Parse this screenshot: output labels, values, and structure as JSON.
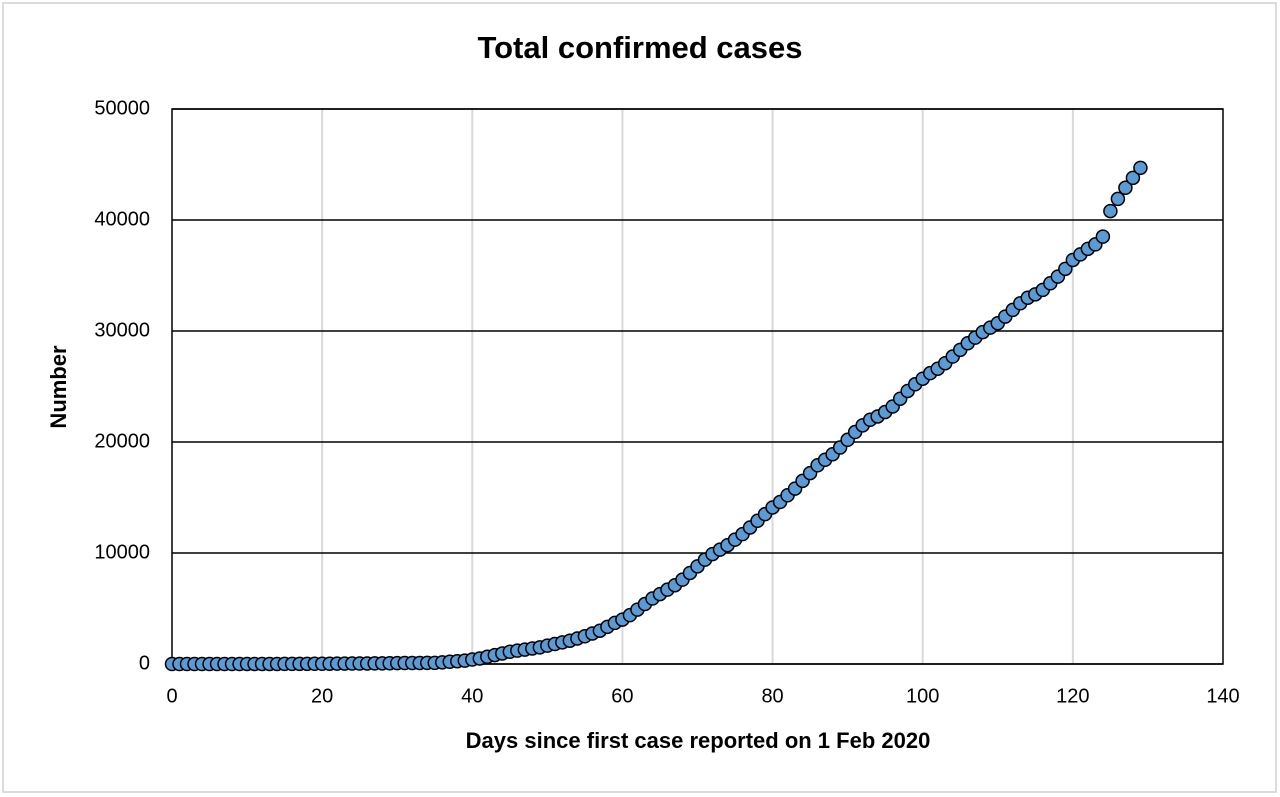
{
  "chart_data": {
    "type": "scatter",
    "title": "Total confirmed cases",
    "x_label": "Days since first case reported on 1 Feb 2020",
    "y_label": "Number",
    "xlim": [
      0,
      140
    ],
    "xticks": [
      0,
      20,
      40,
      60,
      80,
      100,
      120,
      140
    ],
    "ylim": [
      0,
      50000
    ],
    "yticks": [
      0,
      10000,
      20000,
      30000,
      40000,
      50000
    ],
    "grid": true,
    "color": "#5b9bd5",
    "x": [
      0,
      1,
      2,
      3,
      4,
      5,
      6,
      7,
      8,
      9,
      10,
      11,
      12,
      13,
      14,
      15,
      16,
      17,
      18,
      19,
      20,
      21,
      22,
      23,
      24,
      25,
      26,
      27,
      28,
      29,
      30,
      31,
      32,
      33,
      34,
      35,
      36,
      37,
      38,
      39,
      40,
      41,
      42,
      43,
      44,
      45,
      46,
      47,
      48,
      49,
      50,
      51,
      52,
      53,
      54,
      55,
      56,
      57,
      58,
      59,
      60,
      61,
      62,
      63,
      64,
      65,
      66,
      67,
      68,
      69,
      70,
      71,
      72,
      73,
      74,
      75,
      76,
      77,
      78,
      79,
      80,
      81,
      82,
      83,
      84,
      85,
      86,
      87,
      88,
      89,
      90,
      91,
      92,
      93,
      94,
      95,
      96,
      97,
      98,
      99,
      100,
      101,
      102,
      103,
      104,
      105,
      106,
      107,
      108,
      109,
      110,
      111,
      112,
      113,
      114,
      115,
      116,
      117,
      118,
      119,
      120,
      121,
      122,
      123,
      124,
      125,
      126,
      127,
      128,
      129
    ],
    "values": [
      0,
      0,
      0,
      0,
      0,
      0,
      0,
      0,
      0,
      0,
      1,
      1,
      2,
      3,
      5,
      7,
      9,
      12,
      15,
      18,
      22,
      26,
      30,
      35,
      40,
      45,
      50,
      55,
      60,
      70,
      80,
      85,
      90,
      95,
      100,
      100,
      150,
      200,
      250,
      300,
      400,
      500,
      650,
      800,
      950,
      1100,
      1200,
      1300,
      1400,
      1500,
      1650,
      1800,
      1950,
      2100,
      2300,
      2500,
      2750,
      3000,
      3350,
      3700,
      4000,
      4400,
      4900,
      5400,
      5900,
      6300,
      6700,
      7100,
      7600,
      8200,
      8800,
      9400,
      9900,
      10300,
      10700,
      11200,
      11700,
      12300,
      12900,
      13500,
      14100,
      14600,
      15200,
      15800,
      16500,
      17200,
      17900,
      18400,
      18900,
      19500,
      20200,
      20900,
      21500,
      22000,
      22300,
      22700,
      23200,
      23900,
      24600,
      25200,
      25700,
      26200,
      26600,
      27100,
      27700,
      28300,
      28900,
      29400,
      29900,
      30300,
      30700,
      31300,
      31900,
      32500,
      33000,
      33300,
      33700,
      34300,
      34900,
      35600,
      36400,
      36900,
      37400,
      37800,
      38500,
      40800,
      41900,
      42900,
      43800,
      44700
    ]
  }
}
